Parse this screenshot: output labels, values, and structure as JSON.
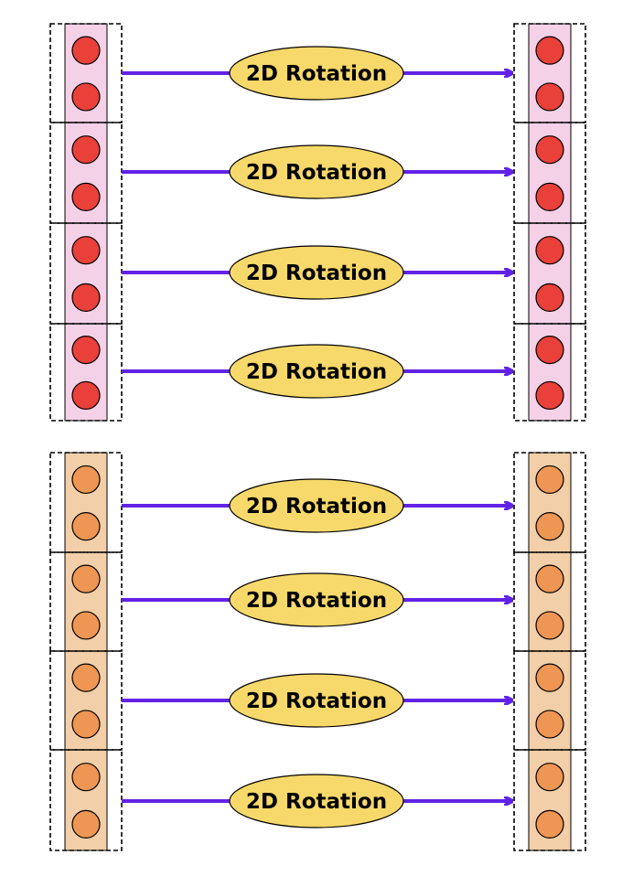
{
  "colors": {
    "arrow": "#6222e6",
    "ellipse_fill": "#f7d96b",
    "ellipse_stroke": "#000000",
    "dashed_border": "#000000",
    "group1_strip": "#f5d1e8",
    "group1_circle": "#e9413a",
    "group2_strip": "#f2cfa8",
    "group2_circle": "#ee9653",
    "circle_stroke": "#000000"
  },
  "groups": [
    {
      "name": "group-1",
      "strip_key": "group1_strip",
      "circle_key": "group1_circle",
      "rows": [
        {
          "label": "2D Rotation"
        },
        {
          "label": "2D Rotation"
        },
        {
          "label": "2D Rotation"
        },
        {
          "label": "2D Rotation"
        }
      ]
    },
    {
      "name": "group-2",
      "strip_key": "group2_strip",
      "circle_key": "group2_circle",
      "rows": [
        {
          "label": "2D Rotation"
        },
        {
          "label": "2D Rotation"
        },
        {
          "label": "2D Rotation"
        },
        {
          "label": "2D Rotation"
        }
      ]
    }
  ]
}
